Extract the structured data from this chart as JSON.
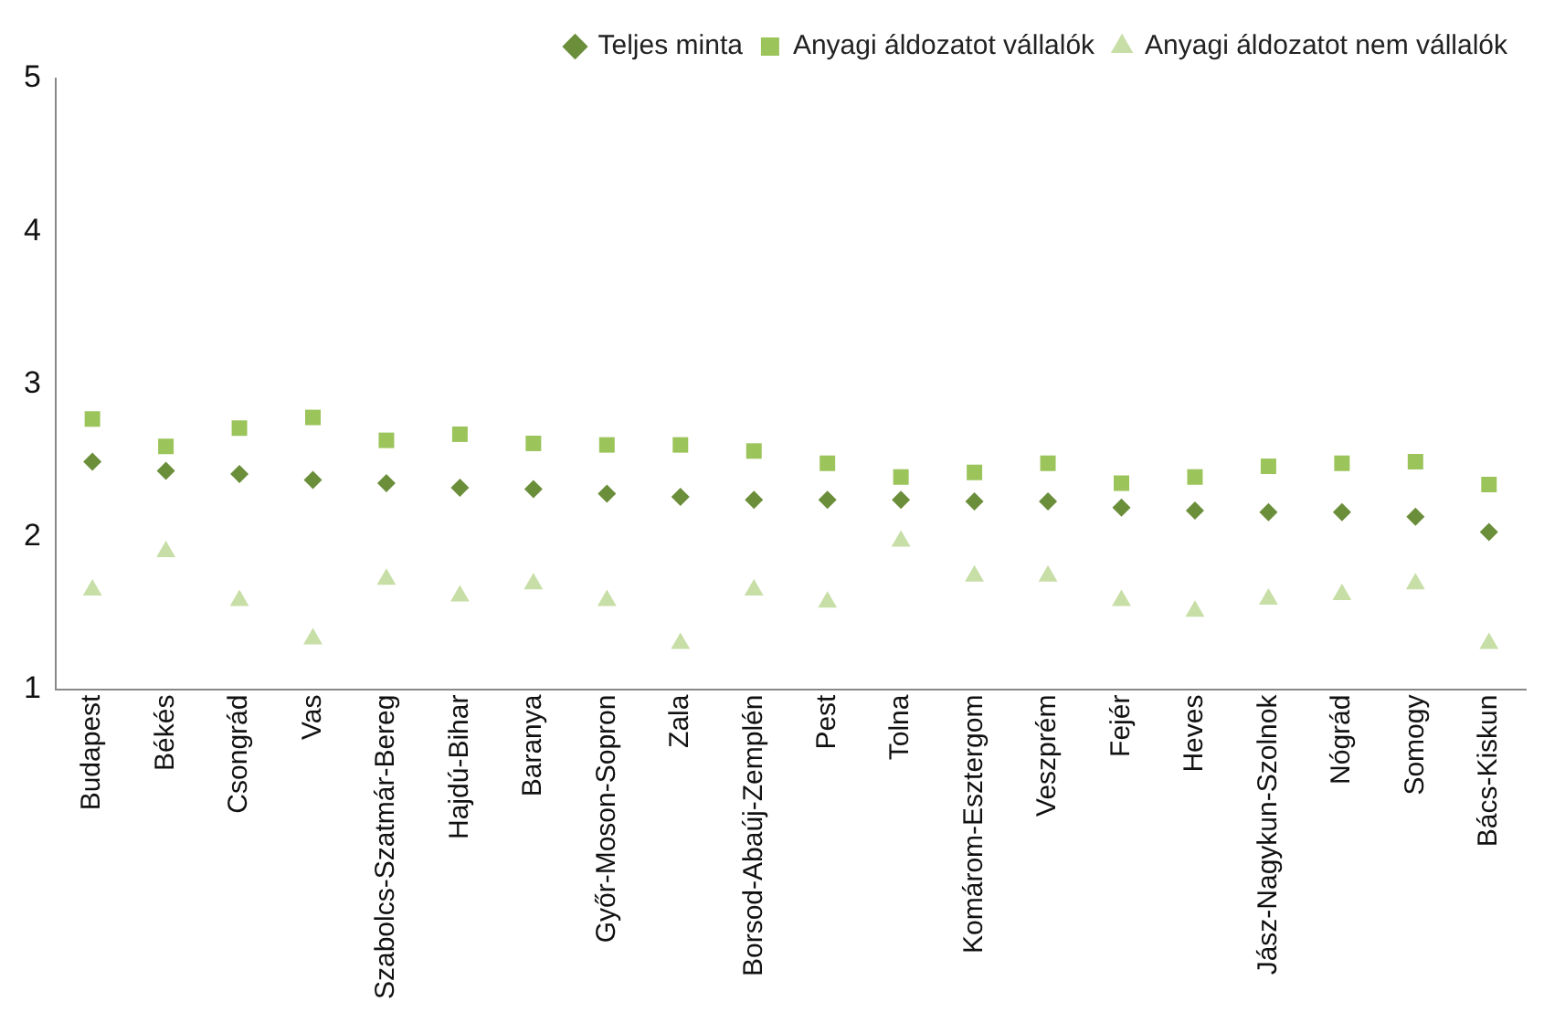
{
  "chart_data": {
    "type": "scatter",
    "categories": [
      "Budapest",
      "Békés",
      "Csongrád",
      "Vas",
      "Szabolcs-Szatmár-Bereg",
      "Hajdú-Bihar",
      "Baranya",
      "Győr-Moson-Sopron",
      "Zala",
      "Borsod-Abaúj-Zemplén",
      "Pest",
      "Tolna",
      "Komárom-Esztergom",
      "Veszprém",
      "Fejér",
      "Heves",
      "Jász-Nagykun-Szolnok",
      "Nógrád",
      "Somogy",
      "Bács-Kiskun"
    ],
    "series": [
      {
        "name": "Teljes minta",
        "color": "#6b8e3a",
        "marker": "diamond",
        "values": [
          2.49,
          2.43,
          2.41,
          2.37,
          2.35,
          2.32,
          2.31,
          2.28,
          2.26,
          2.24,
          2.24,
          2.24,
          2.23,
          2.23,
          2.19,
          2.17,
          2.16,
          2.16,
          2.13,
          2.03
        ]
      },
      {
        "name": "Anyagi áldozatot vállalók",
        "color": "#9bc45a",
        "marker": "square",
        "values": [
          2.77,
          2.59,
          2.71,
          2.78,
          2.63,
          2.67,
          2.61,
          2.6,
          2.6,
          2.56,
          2.48,
          2.39,
          2.42,
          2.48,
          2.35,
          2.39,
          2.46,
          2.48,
          2.49,
          2.34
        ]
      },
      {
        "name": "Anyagi áldozatot nem vállalók",
        "color": "#c7dea6",
        "marker": "triangle",
        "values": [
          1.65,
          1.9,
          1.58,
          1.33,
          1.72,
          1.61,
          1.69,
          1.58,
          1.3,
          1.65,
          1.57,
          1.97,
          1.74,
          1.74,
          1.58,
          1.51,
          1.59,
          1.62,
          1.69,
          1.3
        ]
      }
    ],
    "ylim": [
      1,
      5
    ],
    "yticks": [
      1,
      2,
      3,
      4,
      5
    ],
    "grid": false,
    "legend": "top right"
  }
}
